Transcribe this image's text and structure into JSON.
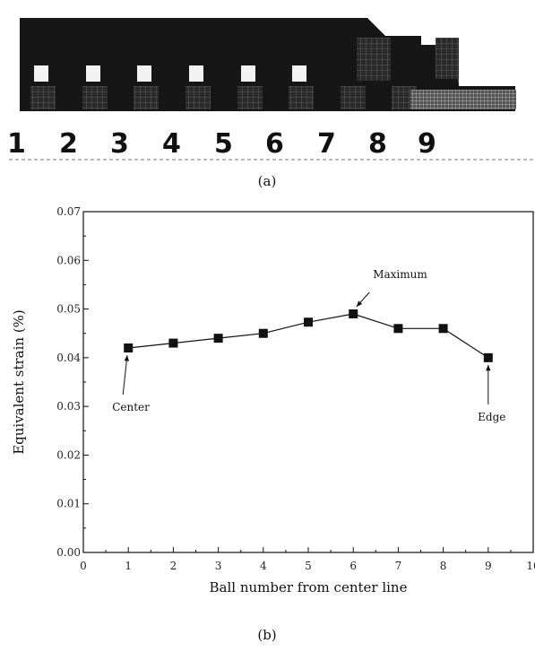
{
  "mesh": {
    "ball_numbers": [
      "1",
      "2",
      "3",
      "4",
      "5",
      "6",
      "7",
      "8",
      "9"
    ],
    "label": "(a)"
  },
  "chart_data": {
    "type": "line",
    "panel_label": "(b)",
    "xlabel": "Ball number from center line",
    "ylabel": "Equivalent strain (%)",
    "xlim": [
      0,
      10
    ],
    "ylim": [
      0,
      0.07
    ],
    "x_ticks": [
      "0",
      "1",
      "2",
      "3",
      "4",
      "5",
      "6",
      "7",
      "8",
      "9",
      "10"
    ],
    "y_ticks": [
      "0.00",
      "0.01",
      "0.02",
      "0.03",
      "0.04",
      "0.05",
      "0.06",
      "0.07"
    ],
    "x": [
      1,
      2,
      3,
      4,
      5,
      6,
      7,
      8,
      9
    ],
    "values": [
      0.042,
      0.043,
      0.044,
      0.045,
      0.0473,
      0.049,
      0.046,
      0.046,
      0.04
    ],
    "annotations": [
      {
        "text": "Center",
        "x": 1,
        "y": 0.042
      },
      {
        "text": "Maximum",
        "x": 6,
        "y": 0.049
      },
      {
        "text": "Edge",
        "x": 9,
        "y": 0.04
      }
    ],
    "marker": "square",
    "grid": false,
    "color": "#111111"
  }
}
